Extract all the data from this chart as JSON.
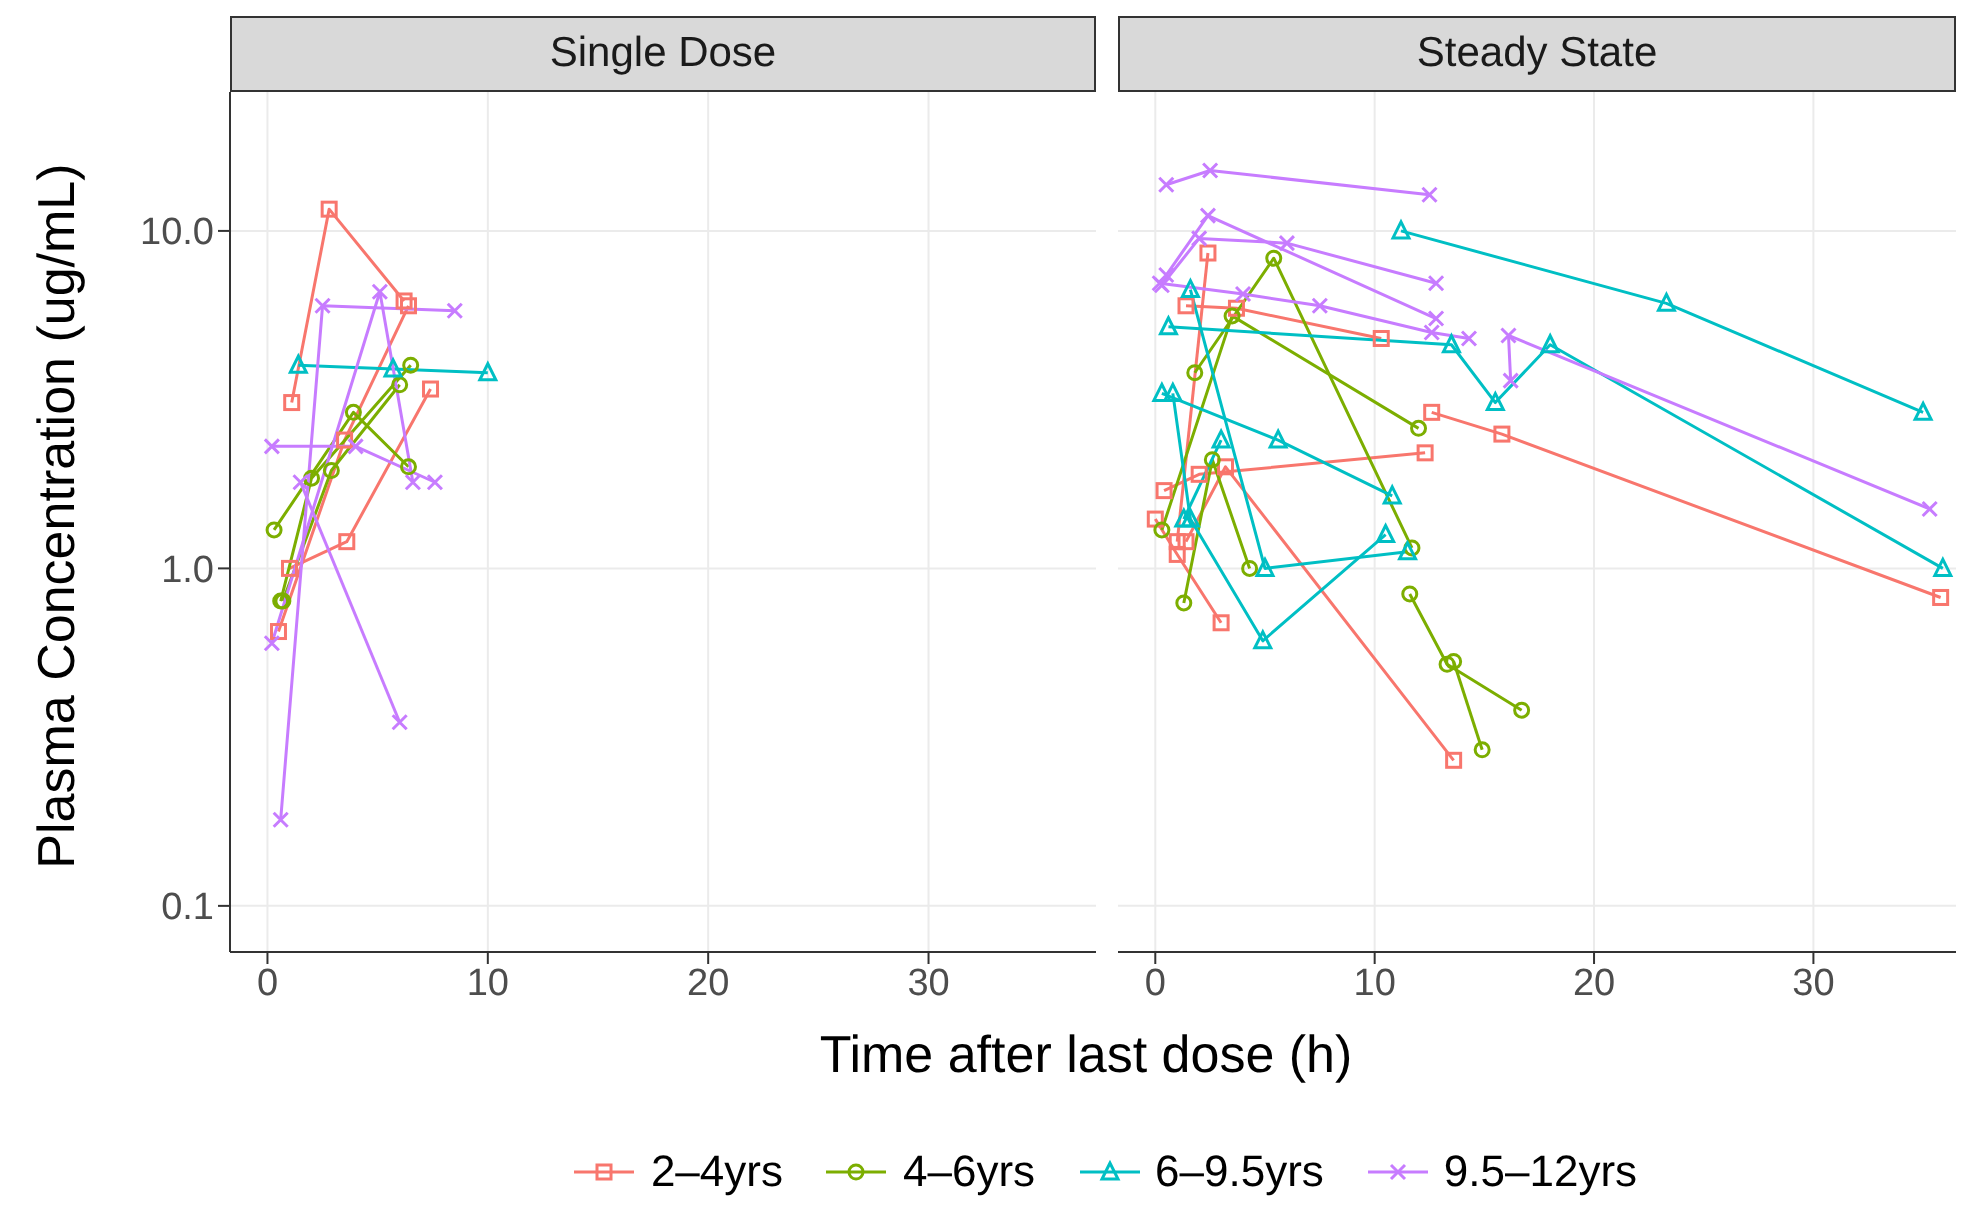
{
  "chart_data": [
    {
      "type": "line",
      "title": "Single Dose",
      "xlabel": "Time after last dose (h)",
      "ylabel": "Plasma Concentration (ug/mL)",
      "log": "y",
      "grid": true,
      "legend": "bottom",
      "xlim": [
        -1.7,
        37.6
      ],
      "ylim": [
        0.073,
        25.8
      ],
      "xticks": [
        0,
        10,
        20,
        30
      ],
      "yticks": [
        {
          "value": 0.1,
          "label": "0.1"
        },
        {
          "value": 1,
          "label": "1.0"
        },
        {
          "value": 10,
          "label": "10.0"
        }
      ],
      "series": [
        {
          "name": "2–4yrs",
          "color": "#f8766d",
          "marker": "square",
          "x": [
            1.1,
            2.8,
            6.2
          ],
          "values": [
            3.1,
            11.6,
            6.2
          ]
        },
        {
          "color": "#f8766d",
          "marker": "square",
          "x": [
            0.5,
            3.5,
            6.4
          ],
          "values": [
            0.65,
            2.4,
            6.0
          ]
        },
        {
          "color": "#f8766d",
          "marker": "square",
          "x": [
            1.0,
            3.6,
            7.4
          ],
          "values": [
            1.0,
            1.2,
            3.4
          ]
        },
        {
          "name": "4–6yrs",
          "color": "#7cae00",
          "marker": "circle",
          "x": [
            0.3,
            3.9,
            6.4
          ],
          "values": [
            1.3,
            2.9,
            2.0
          ]
        },
        {
          "color": "#7cae00",
          "marker": "circle",
          "x": [
            0.6,
            2.0,
            6.5
          ],
          "values": [
            0.8,
            1.85,
            4.0
          ]
        },
        {
          "color": "#7cae00",
          "marker": "circle",
          "x": [
            0.7,
            2.9,
            6.0
          ],
          "values": [
            0.8,
            1.95,
            3.5
          ]
        },
        {
          "name": "6–9.5yrs",
          "color": "#00bfc4",
          "marker": "triangle",
          "x": [
            1.4,
            5.7,
            10.0
          ],
          "values": [
            4.0,
            3.9,
            3.8
          ]
        },
        {
          "name": "9.5–12yrs",
          "color": "#c77cff",
          "marker": "cross",
          "x": [
            0.2,
            4.0,
            7.6
          ],
          "values": [
            2.3,
            2.3,
            1.8
          ]
        },
        {
          "color": "#c77cff",
          "marker": "cross",
          "x": [
            0.6,
            2.5,
            8.5
          ],
          "values": [
            0.18,
            6.0,
            5.8
          ]
        },
        {
          "color": "#c77cff",
          "marker": "cross",
          "x": [
            0.2,
            5.1,
            6.6
          ],
          "values": [
            0.6,
            6.6,
            1.8
          ]
        },
        {
          "color": "#c77cff",
          "marker": "cross",
          "x": [
            1.5,
            6.0
          ],
          "values": [
            1.8,
            0.35
          ]
        }
      ]
    },
    {
      "type": "line",
      "title": "Steady State",
      "log": "y",
      "grid": true,
      "tick_labels": "x",
      "xlim": [
        -1.7,
        36.5
      ],
      "ylim": [
        0.073,
        25.8
      ],
      "xticks": [
        0,
        10,
        20,
        30
      ],
      "yticks": [
        0.1,
        1,
        10
      ],
      "series": [
        {
          "color": "#f8766d",
          "marker": "square",
          "x": [
            1.0,
            2.4
          ],
          "values": [
            1.2,
            8.6
          ]
        },
        {
          "color": "#f8766d",
          "marker": "square",
          "x": [
            1.4,
            3.7,
            10.3
          ],
          "values": [
            6.0,
            5.9,
            4.8
          ]
        },
        {
          "color": "#f8766d",
          "marker": "square",
          "x": [
            12.6,
            15.8,
            35.8
          ],
          "values": [
            2.9,
            2.5,
            0.82
          ]
        },
        {
          "color": "#f8766d",
          "marker": "square",
          "x": [
            0.4,
            2.0,
            12.3
          ],
          "values": [
            1.7,
            1.9,
            2.2
          ]
        },
        {
          "color": "#f8766d",
          "marker": "square",
          "x": [
            0.0,
            1.0,
            3.0
          ],
          "values": [
            1.4,
            1.1,
            0.69
          ]
        },
        {
          "color": "#f8766d",
          "marker": "square",
          "x": [
            1.4,
            3.2,
            13.6
          ],
          "values": [
            1.2,
            2.0,
            0.27
          ]
        },
        {
          "color": "#7cae00",
          "marker": "circle",
          "x": [
            1.8,
            5.4,
            11.7
          ],
          "values": [
            3.8,
            8.3,
            1.15
          ]
        },
        {
          "color": "#7cae00",
          "marker": "circle",
          "x": [
            0.3,
            3.5,
            12.0
          ],
          "values": [
            1.3,
            5.6,
            2.6
          ]
        },
        {
          "color": "#7cae00",
          "marker": "circle",
          "x": [
            1.3,
            2.6,
            4.3
          ],
          "values": [
            0.79,
            2.1,
            1.0
          ]
        },
        {
          "color": "#7cae00",
          "marker": "circle",
          "x": [
            11.6,
            13.3,
            16.7
          ],
          "values": [
            0.84,
            0.52,
            0.38
          ]
        },
        {
          "color": "#7cae00",
          "marker": "circle",
          "x": [
            13.6,
            14.9
          ],
          "values": [
            0.53,
            0.29
          ]
        },
        {
          "color": "#00bfc4",
          "marker": "triangle",
          "x": [
            11.2,
            23.3,
            35.0
          ],
          "values": [
            10.0,
            6.1,
            2.9
          ]
        },
        {
          "color": "#00bfc4",
          "marker": "triangle",
          "x": [
            0.6,
            13.5,
            15.5,
            18.0,
            35.9
          ],
          "values": [
            5.2,
            4.6,
            3.1,
            4.6,
            1.0
          ]
        },
        {
          "color": "#00bfc4",
          "marker": "triangle",
          "x": [
            1.6,
            5.0,
            11.5
          ],
          "values": [
            6.7,
            1.0,
            1.12
          ]
        },
        {
          "color": "#00bfc4",
          "marker": "triangle",
          "x": [
            0.3,
            5.6,
            10.8
          ],
          "values": [
            3.3,
            2.4,
            1.64
          ]
        },
        {
          "color": "#00bfc4",
          "marker": "triangle",
          "x": [
            0.8,
            1.6,
            4.9,
            10.5
          ],
          "values": [
            3.3,
            1.4,
            0.61,
            1.26
          ]
        },
        {
          "color": "#00bfc4",
          "marker": "triangle",
          "x": [
            1.3,
            3.0
          ],
          "values": [
            1.4,
            2.4
          ]
        },
        {
          "color": "#c77cff",
          "marker": "cross",
          "x": [
            0.5,
            2.5,
            12.5
          ],
          "values": [
            13.7,
            15.1,
            12.8
          ]
        },
        {
          "color": "#c77cff",
          "marker": "cross",
          "x": [
            0.5,
            2.4,
            12.8
          ],
          "values": [
            7.4,
            11.1,
            5.5
          ]
        },
        {
          "color": "#c77cff",
          "marker": "cross",
          "x": [
            0.3,
            2.0,
            6.0,
            12.8
          ],
          "values": [
            6.9,
            9.5,
            9.2,
            7.0
          ]
        },
        {
          "color": "#c77cff",
          "marker": "cross",
          "x": [
            0.2,
            4.0,
            7.5,
            12.6,
            14.3
          ],
          "values": [
            7.0,
            6.5,
            6.0,
            5.0,
            4.8
          ]
        },
        {
          "color": "#c77cff",
          "marker": "cross",
          "x": [
            16.2,
            16.1,
            35.3
          ],
          "values": [
            3.6,
            4.9,
            1.5
          ]
        }
      ]
    }
  ]
}
